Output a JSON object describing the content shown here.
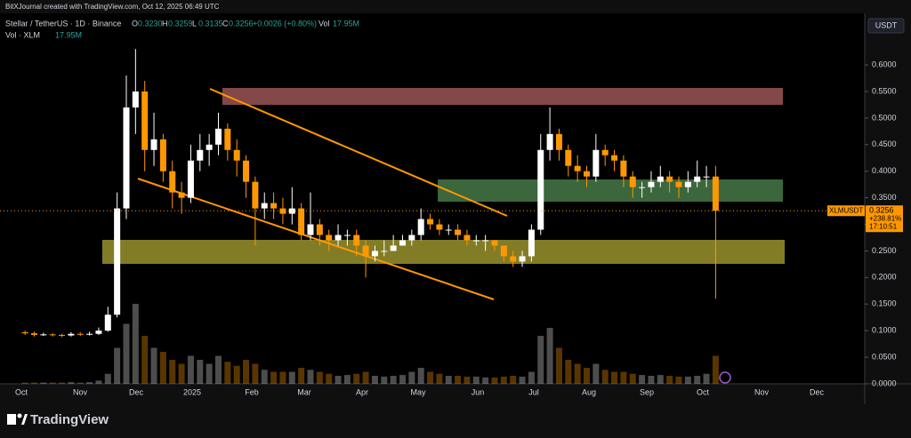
{
  "header": {
    "credit": "BitXJournal created with TradingView.com, Oct 12, 2025 06:49 UTC"
  },
  "chart_data": {
    "type": "candlestick",
    "title": "Stellar / TetherUS · 1D · Binance",
    "legend": {
      "o_label": "O",
      "o": "0.3230",
      "h_label": "H",
      "h": "0.3259",
      "l_label": "L",
      "l": "0.3135",
      "c_label": "C",
      "c": "0.3256",
      "change": "+0.0026 (+0.80%)",
      "vol_label": "Vol",
      "vol": "17.95M"
    },
    "volume_title": "Vol · XLM",
    "volume_value": "17.95M",
    "currency": "USDT",
    "price_tag": {
      "symbol": "XLMUSDT",
      "price": "0.3256",
      "change": "+238.81%",
      "countdown": "17:10:51"
    },
    "up_color": "#ffffff",
    "down_color": "#ff9800",
    "ylim": [
      0,
      0.6954
    ],
    "yticks": [
      {
        "value": 0.6,
        "label": "0.6000"
      },
      {
        "value": 0.55,
        "label": "0.5500"
      },
      {
        "value": 0.5,
        "label": "0.5000"
      },
      {
        "value": 0.45,
        "label": "0.4500"
      },
      {
        "value": 0.4,
        "label": "0.4000"
      },
      {
        "value": 0.35,
        "label": "0.3500"
      },
      {
        "value": 0.3,
        "label": "0.3000"
      },
      {
        "value": 0.25,
        "label": "0.2500"
      },
      {
        "value": 0.2,
        "label": "0.2000"
      },
      {
        "value": 0.15,
        "label": "0.1500"
      },
      {
        "value": 0.1,
        "label": "0.1000"
      },
      {
        "value": 0.05,
        "label": "0.0500"
      },
      {
        "value": 0,
        "label": "0.0000"
      }
    ],
    "categories": [
      "Oct",
      "Nov",
      "Dec",
      "2025",
      "Feb",
      "Mar",
      "Apr",
      "May",
      "Jun",
      "Jul",
      "Aug",
      "Sep",
      "Oct",
      "Nov",
      "Dec"
    ],
    "candles": [
      [
        0.097,
        0.1,
        0.092,
        0.095
      ],
      [
        0.095,
        0.098,
        0.089,
        0.092
      ],
      [
        0.092,
        0.096,
        0.09,
        0.093
      ],
      [
        0.093,
        0.095,
        0.089,
        0.092
      ],
      [
        0.092,
        0.094,
        0.088,
        0.091
      ],
      [
        0.091,
        0.097,
        0.089,
        0.094
      ],
      [
        0.094,
        0.097,
        0.09,
        0.093
      ],
      [
        0.093,
        0.098,
        0.091,
        0.094
      ],
      [
        0.094,
        0.106,
        0.092,
        0.1
      ],
      [
        0.1,
        0.145,
        0.098,
        0.13
      ],
      [
        0.13,
        0.36,
        0.125,
        0.33
      ],
      [
        0.33,
        0.58,
        0.31,
        0.52
      ],
      [
        0.52,
        0.63,
        0.47,
        0.55
      ],
      [
        0.55,
        0.57,
        0.4,
        0.44
      ],
      [
        0.44,
        0.51,
        0.41,
        0.46
      ],
      [
        0.46,
        0.47,
        0.38,
        0.4
      ],
      [
        0.4,
        0.42,
        0.33,
        0.36
      ],
      [
        0.36,
        0.38,
        0.32,
        0.35
      ],
      [
        0.35,
        0.45,
        0.34,
        0.42
      ],
      [
        0.42,
        0.47,
        0.4,
        0.44
      ],
      [
        0.44,
        0.47,
        0.41,
        0.45
      ],
      [
        0.45,
        0.51,
        0.43,
        0.48
      ],
      [
        0.48,
        0.49,
        0.42,
        0.44
      ],
      [
        0.44,
        0.46,
        0.39,
        0.42
      ],
      [
        0.42,
        0.43,
        0.35,
        0.38
      ],
      [
        0.38,
        0.39,
        0.26,
        0.33
      ],
      [
        0.33,
        0.36,
        0.31,
        0.34
      ],
      [
        0.34,
        0.36,
        0.31,
        0.33
      ],
      [
        0.33,
        0.35,
        0.3,
        0.32
      ],
      [
        0.32,
        0.37,
        0.3,
        0.33
      ],
      [
        0.33,
        0.34,
        0.27,
        0.28
      ],
      [
        0.28,
        0.36,
        0.27,
        0.3
      ],
      [
        0.3,
        0.31,
        0.26,
        0.28
      ],
      [
        0.28,
        0.29,
        0.25,
        0.27
      ],
      [
        0.27,
        0.3,
        0.26,
        0.28
      ],
      [
        0.28,
        0.29,
        0.26,
        0.28
      ],
      [
        0.28,
        0.29,
        0.24,
        0.26
      ],
      [
        0.26,
        0.27,
        0.2,
        0.24
      ],
      [
        0.24,
        0.26,
        0.23,
        0.25
      ],
      [
        0.25,
        0.27,
        0.24,
        0.25
      ],
      [
        0.25,
        0.28,
        0.25,
        0.26
      ],
      [
        0.26,
        0.28,
        0.26,
        0.27
      ],
      [
        0.27,
        0.29,
        0.26,
        0.28
      ],
      [
        0.28,
        0.33,
        0.27,
        0.31
      ],
      [
        0.31,
        0.32,
        0.29,
        0.3
      ],
      [
        0.3,
        0.31,
        0.28,
        0.29
      ],
      [
        0.29,
        0.3,
        0.28,
        0.29
      ],
      [
        0.29,
        0.3,
        0.27,
        0.28
      ],
      [
        0.28,
        0.29,
        0.26,
        0.27
      ],
      [
        0.27,
        0.28,
        0.26,
        0.27
      ],
      [
        0.27,
        0.28,
        0.25,
        0.27
      ],
      [
        0.27,
        0.27,
        0.25,
        0.26
      ],
      [
        0.26,
        0.26,
        0.23,
        0.24
      ],
      [
        0.24,
        0.25,
        0.22,
        0.23
      ],
      [
        0.23,
        0.25,
        0.22,
        0.24
      ],
      [
        0.24,
        0.3,
        0.23,
        0.29
      ],
      [
        0.29,
        0.47,
        0.28,
        0.44
      ],
      [
        0.44,
        0.52,
        0.42,
        0.47
      ],
      [
        0.47,
        0.48,
        0.42,
        0.44
      ],
      [
        0.44,
        0.45,
        0.39,
        0.41
      ],
      [
        0.41,
        0.43,
        0.38,
        0.4
      ],
      [
        0.4,
        0.41,
        0.37,
        0.39
      ],
      [
        0.39,
        0.47,
        0.38,
        0.44
      ],
      [
        0.44,
        0.45,
        0.41,
        0.43
      ],
      [
        0.43,
        0.44,
        0.4,
        0.42
      ],
      [
        0.42,
        0.43,
        0.37,
        0.39
      ],
      [
        0.39,
        0.4,
        0.35,
        0.37
      ],
      [
        0.37,
        0.38,
        0.35,
        0.37
      ],
      [
        0.37,
        0.4,
        0.36,
        0.38
      ],
      [
        0.38,
        0.41,
        0.37,
        0.39
      ],
      [
        0.39,
        0.4,
        0.36,
        0.38
      ],
      [
        0.38,
        0.39,
        0.35,
        0.37
      ],
      [
        0.37,
        0.4,
        0.36,
        0.38
      ],
      [
        0.38,
        0.42,
        0.37,
        0.39
      ],
      [
        0.39,
        0.41,
        0.37,
        0.39
      ],
      [
        0.39,
        0.41,
        0.16,
        0.3256
      ]
    ],
    "volume": [
      3,
      3,
      3,
      3,
      3,
      4,
      3,
      4,
      8,
      25,
      90,
      150,
      200,
      120,
      90,
      80,
      60,
      50,
      70,
      60,
      50,
      70,
      55,
      45,
      60,
      50,
      35,
      30,
      30,
      30,
      40,
      35,
      30,
      25,
      20,
      22,
      25,
      30,
      20,
      18,
      20,
      22,
      30,
      40,
      30,
      25,
      20,
      20,
      18,
      18,
      16,
      16,
      18,
      20,
      18,
      30,
      120,
      140,
      90,
      60,
      50,
      40,
      50,
      35,
      30,
      30,
      25,
      22,
      20,
      22,
      20,
      18,
      18,
      20,
      25,
      70
    ]
  },
  "footer": {
    "brand": "TradingView"
  }
}
